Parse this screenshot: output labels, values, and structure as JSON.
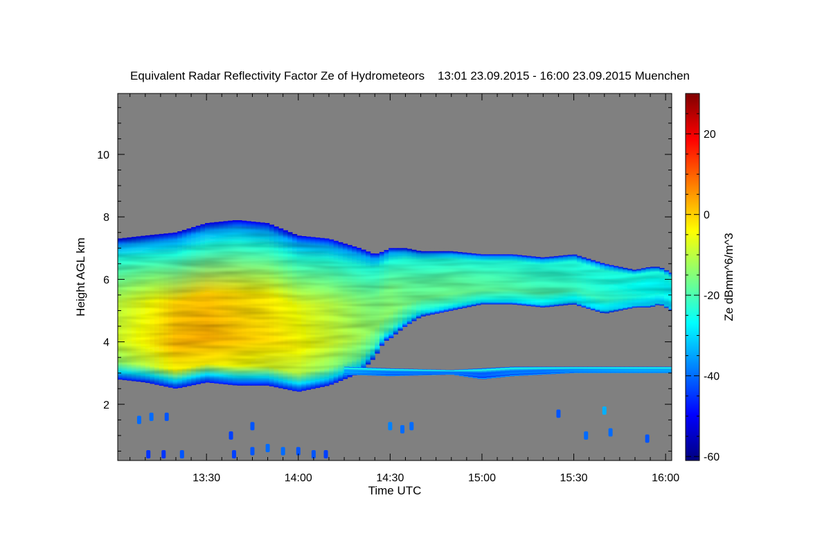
{
  "chart_data": {
    "type": "heatmap",
    "title": "Equivalent Radar Reflectivity Factor Ze of Hydrometeors    13:01 23.09.2015 - 16:00 23.09.2015 Muenchen",
    "xlabel": "Time UTC",
    "ylabel": "Height AGL km",
    "colorbar_label": "Ze dBmm^6/m^3",
    "x_tick_labels": [
      "13:30",
      "14:00",
      "14:30",
      "15:00",
      "15:30",
      "16:00"
    ],
    "x_tick_minutes": [
      30,
      60,
      90,
      120,
      150,
      180
    ],
    "xlim_minutes": [
      1,
      182
    ],
    "y_ticks": [
      2,
      4,
      6,
      8,
      10
    ],
    "ylim": [
      0.2,
      11.95
    ],
    "colorbar_ticks": [
      -60,
      -40,
      -20,
      0,
      20
    ],
    "colorbar_range": [
      -61,
      30
    ],
    "background_color": "#808080",
    "colormap": [
      "#00007f",
      "#0000ff",
      "#007fff",
      "#00ffff",
      "#7fff7f",
      "#ffff00",
      "#ff7f00",
      "#ff0000",
      "#7f0000"
    ],
    "layers": [
      {
        "name": "main-cloud",
        "time_min": [
          1,
          10,
          20,
          30,
          40,
          50,
          60,
          70,
          80,
          85,
          88,
          90,
          95,
          100,
          110,
          120,
          130,
          140,
          150,
          160,
          170,
          175,
          178,
          182
        ],
        "top_km": [
          7.3,
          7.4,
          7.5,
          7.8,
          7.9,
          7.8,
          7.4,
          7.3,
          7.0,
          6.8,
          6.9,
          7.0,
          7.0,
          6.9,
          6.9,
          6.8,
          6.8,
          6.7,
          6.8,
          6.5,
          6.3,
          6.4,
          6.4,
          6.2
        ],
        "base_km": [
          2.8,
          2.7,
          2.5,
          2.7,
          2.6,
          2.6,
          2.4,
          2.6,
          3.0,
          3.5,
          4.0,
          4.1,
          4.5,
          4.8,
          5.0,
          5.2,
          5.2,
          5.1,
          5.2,
          4.9,
          5.1,
          5.1,
          5.2,
          5.0
        ],
        "peak_dbz": [
          -8,
          -4,
          2,
          3,
          1,
          -1,
          -4,
          -8,
          -12,
          -14,
          -14,
          -14,
          -16,
          -17,
          -17,
          -18,
          -19,
          -20,
          -21,
          -22,
          -24,
          -25,
          -25,
          -26
        ]
      },
      {
        "name": "lower-layer",
        "time_min": [
          75,
          90,
          110,
          120,
          130,
          140,
          150,
          160,
          170,
          182
        ],
        "top_km": [
          3.2,
          3.15,
          3.1,
          3.15,
          3.2,
          3.2,
          3.2,
          3.2,
          3.2,
          3.2
        ],
        "base_km": [
          2.95,
          2.9,
          2.95,
          2.8,
          2.9,
          2.95,
          3.0,
          3.0,
          3.0,
          3.0
        ],
        "peak_dbz": [
          -34,
          -38,
          -38,
          -40,
          -38,
          -38,
          -36,
          -35,
          -34,
          -34
        ]
      }
    ],
    "echoes": [
      {
        "time_min": 8,
        "height_km": 1.5,
        "dbz": -40
      },
      {
        "time_min": 12,
        "height_km": 1.6,
        "dbz": -40
      },
      {
        "time_min": 17,
        "height_km": 1.6,
        "dbz": -42
      },
      {
        "time_min": 11,
        "height_km": 0.4,
        "dbz": -45
      },
      {
        "time_min": 16,
        "height_km": 0.4,
        "dbz": -45
      },
      {
        "time_min": 22,
        "height_km": 0.4,
        "dbz": -42
      },
      {
        "time_min": 39,
        "height_km": 0.4,
        "dbz": -44
      },
      {
        "time_min": 45,
        "height_km": 0.5,
        "dbz": -42
      },
      {
        "time_min": 50,
        "height_km": 0.6,
        "dbz": -40
      },
      {
        "time_min": 55,
        "height_km": 0.5,
        "dbz": -40
      },
      {
        "time_min": 60,
        "height_km": 0.5,
        "dbz": -42
      },
      {
        "time_min": 65,
        "height_km": 0.4,
        "dbz": -42
      },
      {
        "time_min": 69,
        "height_km": 0.4,
        "dbz": -44
      },
      {
        "time_min": 38,
        "height_km": 1.0,
        "dbz": -44
      },
      {
        "time_min": 45,
        "height_km": 1.3,
        "dbz": -42
      },
      {
        "time_min": 90,
        "height_km": 1.3,
        "dbz": -38
      },
      {
        "time_min": 94,
        "height_km": 1.2,
        "dbz": -40
      },
      {
        "time_min": 97,
        "height_km": 1.3,
        "dbz": -40
      },
      {
        "time_min": 154,
        "height_km": 1.0,
        "dbz": -40
      },
      {
        "time_min": 160,
        "height_km": 1.8,
        "dbz": -34
      },
      {
        "time_min": 162,
        "height_km": 1.1,
        "dbz": -40
      },
      {
        "time_min": 145,
        "height_km": 1.7,
        "dbz": -42
      },
      {
        "time_min": 174,
        "height_km": 0.9,
        "dbz": -42
      }
    ]
  }
}
